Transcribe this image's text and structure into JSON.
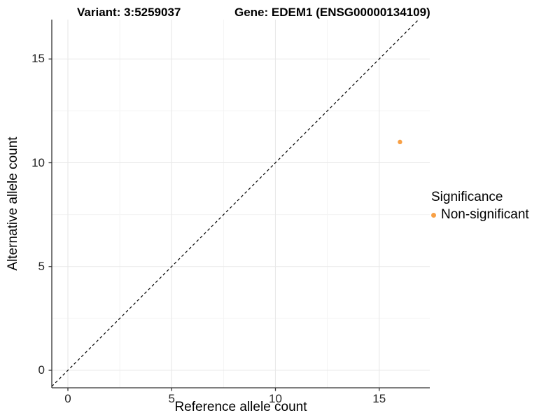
{
  "header": {
    "title_variant": "Variant: 3:5259037",
    "title_gene": "Gene: EDEM1 (ENSG00000134109)"
  },
  "chart_data": {
    "type": "scatter",
    "xlabel": "Reference allele count",
    "ylabel": "Alternative allele count",
    "xlim": [
      -0.78,
      17.44
    ],
    "ylim": [
      -0.84,
      16.9
    ],
    "x_major_ticks": [
      0,
      5,
      10,
      15
    ],
    "y_major_ticks": [
      0,
      5,
      10,
      15
    ],
    "x_minor_gridlines": [
      2.5,
      7.5,
      12.5
    ],
    "y_minor_gridlines": [
      2.5,
      7.5,
      12.5
    ],
    "grid": "major+minor",
    "series": [
      {
        "name": "Non-significant",
        "color": "#F8A045",
        "points": [
          {
            "x": 16,
            "y": 11
          }
        ]
      }
    ],
    "reference_line": {
      "type": "identity",
      "slope": 1,
      "intercept": 0,
      "line_style": "dashed",
      "color": "#000000"
    },
    "legend": {
      "title": "Significance",
      "position": "right",
      "items": [
        {
          "label": "Non-significant",
          "color": "#F8A045",
          "marker": "circle"
        }
      ]
    },
    "colors": {
      "grid_major": "#e8e8e8",
      "grid_minor": "#f3f3f3",
      "axis_line": "#333333",
      "tick_text": "#262626"
    }
  }
}
